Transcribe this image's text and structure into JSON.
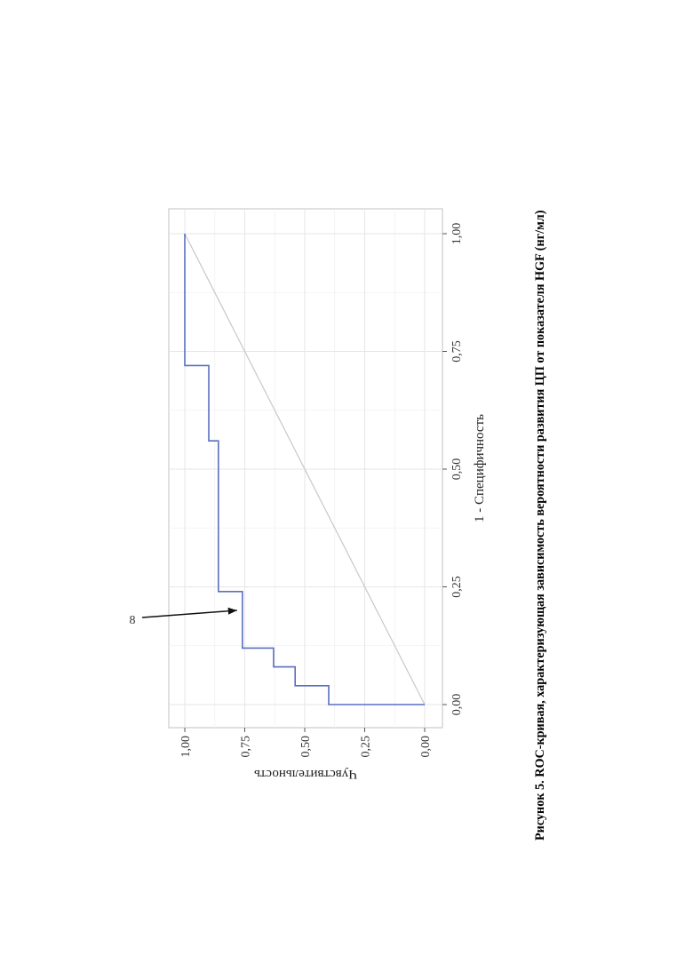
{
  "chart_data": {
    "type": "line",
    "title": "",
    "xlabel": "1 - Специфичность",
    "ylabel": "Чувствительность",
    "xlim": [
      0,
      1
    ],
    "ylim": [
      0,
      1
    ],
    "x_ticks": [
      "0,00",
      "0,25",
      "0,50",
      "0,75",
      "1,00"
    ],
    "y_ticks": [
      "0,00",
      "0,25",
      "0,50",
      "0,75",
      "1,00"
    ],
    "grid": true,
    "orientation": "rotated 90° counter-clockwise",
    "series": [
      {
        "color": "#5a6fc0",
        "x": [
          0.0,
          0.0,
          0.04,
          0.04,
          0.08,
          0.08,
          0.12,
          0.12,
          0.24,
          0.24,
          0.56,
          0.56,
          0.72,
          0.72,
          1.0
        ],
        "y": [
          0.0,
          0.4,
          0.4,
          0.54,
          0.54,
          0.63,
          0.63,
          0.76,
          0.76,
          0.86,
          0.86,
          0.9,
          0.9,
          1.0,
          1.0
        ]
      }
    ],
    "reference_line": {
      "color": "#c8c8c8",
      "x": [
        0,
        1
      ],
      "y": [
        0,
        1
      ]
    },
    "annotation": {
      "label": "8",
      "target_x": 0.2,
      "target_y": 0.76
    }
  },
  "caption": "Рисунок 5. ROC-кривая, характеризующая зависимость вероятности развития ЦП от показателя HGF (нг/мл)"
}
